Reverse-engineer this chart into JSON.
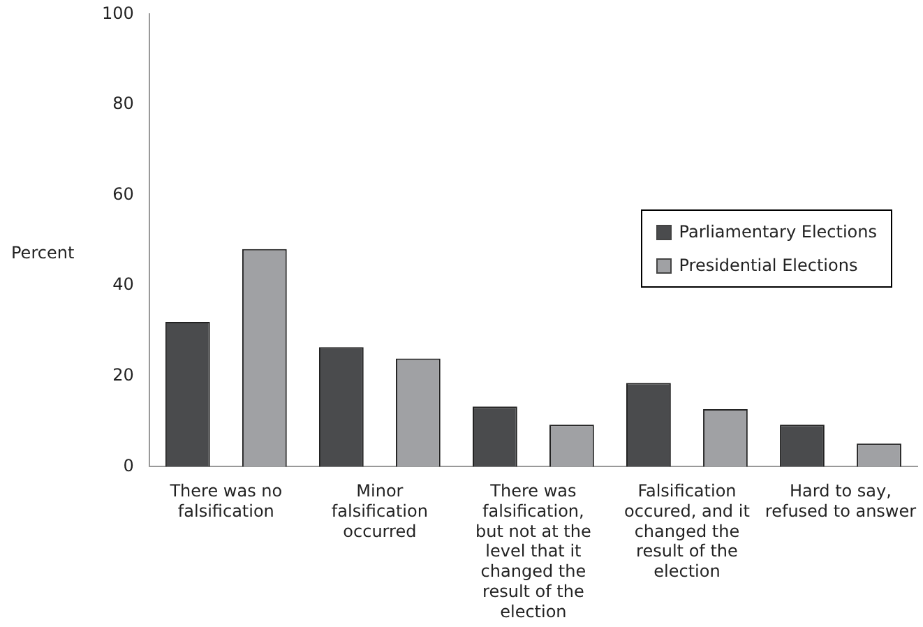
{
  "chart_data": {
    "type": "bar",
    "ylabel": "Percent",
    "categories": [
      "There was no falsification",
      "Minor falsification occurred",
      "There was falsification, but not at the level that it changed the result of the election",
      "Falsification occured, and it changed the result of the election",
      "Hard to say, refused to answer"
    ],
    "series": [
      {
        "name": "Parliamentary Elections",
        "color": "#4a4b4d",
        "values": [
          32.0,
          26.4,
          13.3,
          18.5,
          9.3
        ]
      },
      {
        "name": "Presidential Elections",
        "color": "#a0a1a4",
        "values": [
          48.1,
          23.9,
          9.3,
          12.7,
          5.1
        ]
      }
    ],
    "ylim": [
      0,
      100
    ],
    "yticks": [
      0,
      20,
      40,
      60,
      80,
      100
    ],
    "grid": false,
    "legend": "right"
  }
}
